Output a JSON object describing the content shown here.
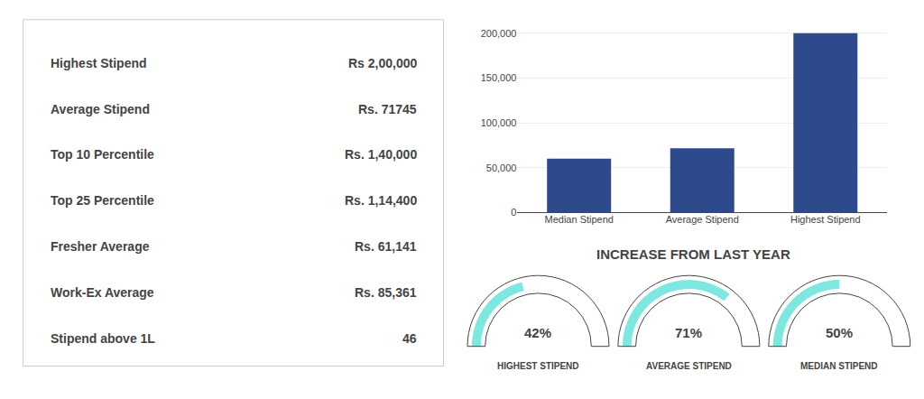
{
  "chart_data": [
    {
      "type": "table",
      "categories": [
        "Highest Stipend",
        "Average Stipend",
        "Top 10 Percentile",
        "Top 25 Percentile",
        "Fresher Average",
        "Work-Ex Average",
        "Stipend above 1L"
      ],
      "values": [
        200000,
        71745,
        140000,
        114400,
        61141,
        85361,
        46
      ],
      "value_labels": [
        "Rs 2,00,000",
        "Rs. 71745",
        "Rs. 1,40,000",
        "Rs. 1,14,400",
        "Rs. 61,141",
        "Rs. 85,361",
        "46"
      ],
      "data_labels": true
    },
    {
      "type": "bar",
      "categories": [
        "Median Stipend",
        "Average Stipend",
        "Highest Stipend"
      ],
      "values": [
        60000,
        71745,
        200000
      ],
      "color": "#2e4a8c",
      "ylim": [
        0,
        215000
      ],
      "yticks": [
        0,
        {
          "value": 50000,
          "label": "50,000"
        },
        {
          "value": 100000,
          "label": "100,000"
        },
        {
          "value": 150000,
          "label": "150,000"
        },
        {
          "value": 200000,
          "label": "200,000"
        }
      ],
      "grid": true
    },
    {
      "type": "gauge",
      "title": "INCREASE FROM LAST YEAR",
      "categories": [
        "HIGHEST STIPEND",
        "AVERAGE STIPEND",
        "MEDIAN STIPEND"
      ],
      "values": [
        42,
        71,
        50
      ],
      "value_labels": [
        "42%",
        "71%",
        "50%"
      ],
      "data_labels": true,
      "color": "#7de8df",
      "ylim": [
        0,
        100
      ],
      "tick_labels": false
    }
  ]
}
